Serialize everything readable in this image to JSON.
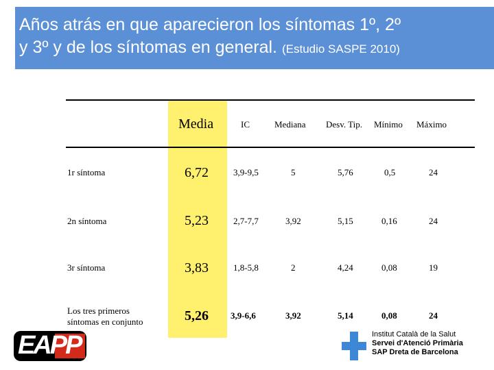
{
  "title": {
    "line1": "Años  atrás en que aparecieron los síntomas 1º, 2º",
    "line2": "y 3º y de los síntomas en general.",
    "source": "(Estudio SASPE 2010)"
  },
  "table": {
    "headers": [
      "Media",
      "IC",
      "Mediana",
      "Desv. Tip.",
      "Mínimo",
      "Máximo"
    ],
    "rows": [
      {
        "label": "1r síntoma",
        "media": "6,72",
        "ic": "3,9-9,5",
        "mediana": "5",
        "desv": "5,76",
        "min": "0,5",
        "max": "24"
      },
      {
        "label": "2n síntoma",
        "media": "5,23",
        "ic": "2,7-7,7",
        "mediana": "3,92",
        "desv": "5,15",
        "min": "0,16",
        "max": "24"
      },
      {
        "label": "3r síntoma",
        "media": "3,83",
        "ic": "1,8-5,8",
        "mediana": "2",
        "desv": "4,24",
        "min": "0,08",
        "max": "19"
      },
      {
        "label_line1": "Los tres primeros",
        "label_line2": "síntomas en conjunto",
        "media": "5,26",
        "ic": "3,9-6,6",
        "mediana": "3,92",
        "desv": "5,14",
        "min": "0,08",
        "max": "24"
      }
    ]
  },
  "footer": {
    "logo_text": "EAPP",
    "institution_line1": "Institut Català de la Salut",
    "institution_line2": "Servei d'Atenció Primària",
    "institution_line3": "SAP Dreta de Barcelona"
  },
  "colors": {
    "title_bg": "#5b8fd6",
    "highlight": "#fff06e",
    "logo_red": "#d42a1c",
    "cross_blue": "#3d88d6"
  }
}
